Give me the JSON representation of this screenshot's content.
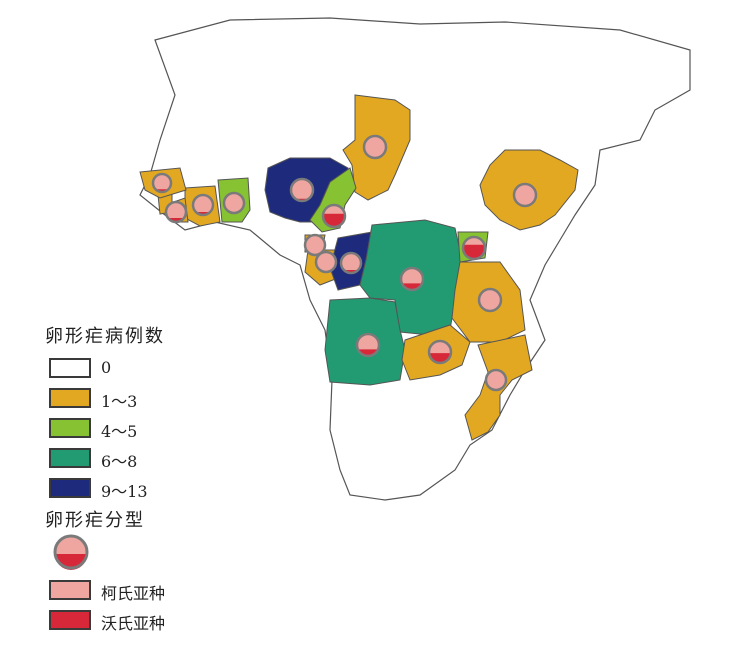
{
  "legend": {
    "cases_title": "卵形疟病例数",
    "case_classes": [
      {
        "label": "0",
        "color": "#ffffff"
      },
      {
        "label": "1～3",
        "color": "#e3a821"
      },
      {
        "label": "4～5",
        "color": "#86c232"
      },
      {
        "label": "6～8",
        "color": "#229b73"
      },
      {
        "label": "9～13",
        "color": "#1e2b7c"
      }
    ],
    "types_title": "卵形疟分型",
    "types": [
      {
        "label": "柯氏亚种",
        "color": "#f0a6a0"
      },
      {
        "label": "沃氏亚种",
        "color": "#d7283a"
      }
    ]
  },
  "map": {
    "outline_color": "#555555",
    "pie_ring_color": "#7a7a7a",
    "countries": [
      {
        "name": "Chad",
        "class": 1,
        "pie_red_fraction": 0.0
      },
      {
        "name": "Ethiopia",
        "class": 1,
        "pie_red_fraction": 0.0
      },
      {
        "name": "Nigeria",
        "class": 4,
        "pie_red_fraction": 0.1
      },
      {
        "name": "Cameroon",
        "class": 2,
        "pie_red_fraction": 0.6
      },
      {
        "name": "Ghana",
        "class": 2,
        "pie_red_fraction": 0.0
      },
      {
        "name": "Cote d'Ivoire",
        "class": 1,
        "pie_red_fraction": 0.15
      },
      {
        "name": "Liberia",
        "class": 1,
        "pie_red_fraction": 0.2
      },
      {
        "name": "Sierra Leone",
        "class": 1,
        "pie_red_fraction": 0.15
      },
      {
        "name": "Guinea",
        "class": 1,
        "pie_red_fraction": 0.0
      },
      {
        "name": "Equatorial Guinea",
        "class": 1,
        "pie_red_fraction": 0.0
      },
      {
        "name": "Gabon",
        "class": 1,
        "pie_red_fraction": 0.0
      },
      {
        "name": "Republic of the Congo",
        "class": 4,
        "pie_red_fraction": 0.15
      },
      {
        "name": "DR Congo",
        "class": 3,
        "pie_red_fraction": 0.3
      },
      {
        "name": "Uganda",
        "class": 2,
        "pie_red_fraction": 0.65
      },
      {
        "name": "Tanzania",
        "class": 1,
        "pie_red_fraction": 0.0
      },
      {
        "name": "Angola",
        "class": 3,
        "pie_red_fraction": 0.3
      },
      {
        "name": "Zambia",
        "class": 1,
        "pie_red_fraction": 0.45
      },
      {
        "name": "Mozambique",
        "class": 1,
        "pie_red_fraction": 0.0
      }
    ]
  }
}
